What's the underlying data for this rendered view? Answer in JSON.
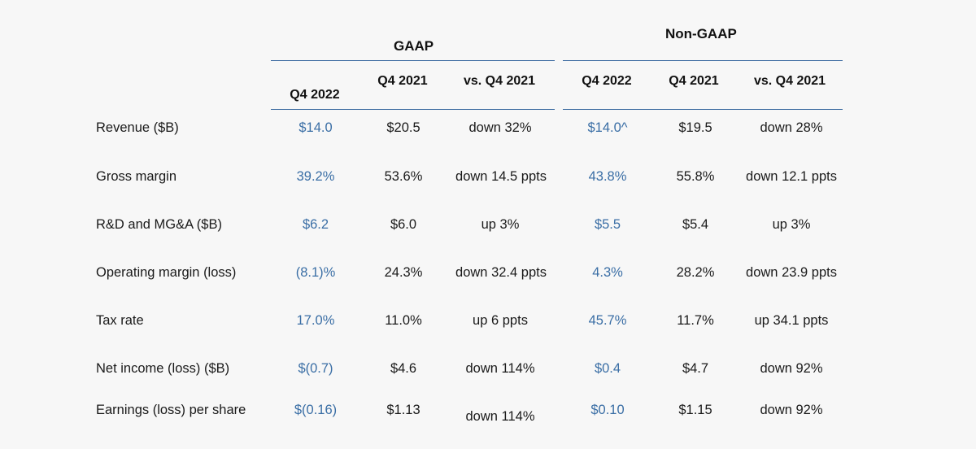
{
  "groups": {
    "gaap": "GAAP",
    "non_gaap": "Non-GAAP"
  },
  "columns": [
    "Q4 2022",
    "Q4 2021",
    "vs. Q4 2021",
    "Q4 2022",
    "Q4 2021",
    "vs. Q4 2021"
  ],
  "rows": [
    {
      "label": "Revenue ($B)",
      "values": [
        "$14.0",
        "$20.5",
        "down 32%",
        "$14.0^",
        "$19.5",
        "down 28%"
      ]
    },
    {
      "label": "Gross margin",
      "values": [
        "39.2%",
        "53.6%",
        "down 14.5 ppts",
        "43.8%",
        "55.8%",
        "down 12.1 ppts"
      ]
    },
    {
      "label": "R&D and MG&A ($B)",
      "values": [
        "$6.2",
        "$6.0",
        "up 3%",
        "$5.5",
        "$5.4",
        "up 3%"
      ]
    },
    {
      "label": "Operating margin (loss)",
      "values": [
        "(8.1)%",
        "24.3%",
        "down 32.4 ppts",
        "4.3%",
        "28.2%",
        "down 23.9 ppts"
      ]
    },
    {
      "label": "Tax rate",
      "values": [
        "17.0%",
        "11.0%",
        "up 6 ppts",
        "45.7%",
        "11.7%",
        "up 34.1 ppts"
      ]
    },
    {
      "label": "Net income (loss) ($B)",
      "values": [
        "$(0.7)",
        "$4.6",
        "down 114%",
        "$0.4",
        "$4.7",
        "down 92%"
      ]
    },
    {
      "label": "Earnings (loss) per share",
      "values": [
        "$(0.16)",
        "$1.13",
        "down 114%",
        "$0.10",
        "$1.15",
        "down 92%"
      ]
    }
  ],
  "colors": {
    "accent": "#3a6ea5",
    "rule": "#3b6aa0",
    "text": "#1a1a1a",
    "background": "#f7f7f7"
  }
}
